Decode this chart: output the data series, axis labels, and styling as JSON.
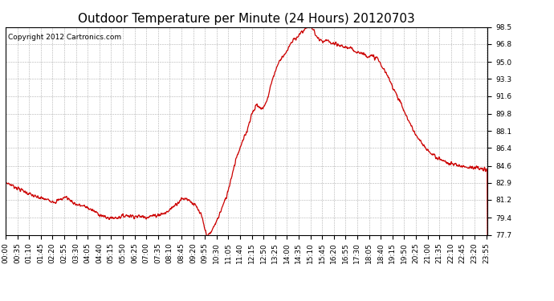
{
  "title": "Outdoor Temperature per Minute (24 Hours) 20120703",
  "copyright_text": "Copyright 2012 Cartronics.com",
  "line_color": "#cc0000",
  "background_color": "#ffffff",
  "plot_bg_color": "#ffffff",
  "grid_color": "#b0b0b0",
  "ylim": [
    77.7,
    98.5
  ],
  "yticks": [
    77.7,
    79.4,
    81.2,
    82.9,
    84.6,
    86.4,
    88.1,
    89.8,
    91.6,
    93.3,
    95.0,
    96.8,
    98.5
  ],
  "title_fontsize": 11,
  "tick_fontsize": 6.5,
  "copyright_fontsize": 6.5,
  "linewidth": 0.9
}
